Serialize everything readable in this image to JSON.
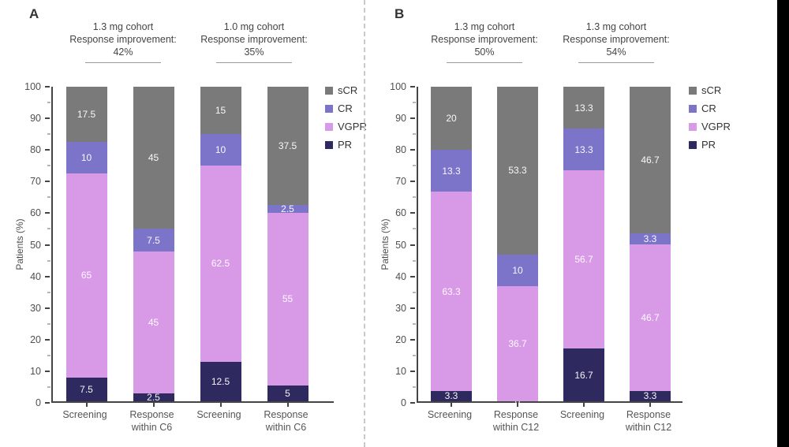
{
  "figure": {
    "background": "#ffffff",
    "axis_color": "#454545",
    "ylabel": "Patients (%)",
    "yticks": [
      0,
      10,
      20,
      30,
      40,
      50,
      60,
      70,
      80,
      90,
      100
    ],
    "legend": [
      {
        "label": "sCR",
        "color": "#7a7a7a"
      },
      {
        "label": "CR",
        "color": "#7c74c9"
      },
      {
        "label": "VGPR",
        "color": "#d89ae6"
      },
      {
        "label": "PR",
        "color": "#2e2a5f"
      }
    ]
  },
  "chart_data": [
    {
      "type": "bar",
      "stacked": true,
      "panel": "A",
      "ylabel": "Patients (%)",
      "ylim": [
        0,
        100
      ],
      "grid": false,
      "legend_position": "right",
      "headers": [
        {
          "cohort": "1.3 mg cohort",
          "label": "Response improvement:",
          "value": "42%"
        },
        {
          "cohort": "1.0 mg cohort",
          "label": "Response improvement:",
          "value": "35%"
        }
      ],
      "categories": [
        [
          "Screening"
        ],
        [
          "Response",
          "within C6"
        ],
        [
          "Screening"
        ],
        [
          "Response",
          "within C6"
        ]
      ],
      "series": [
        {
          "name": "PR",
          "color": "#2e2a5f",
          "values": [
            7.5,
            2.5,
            12.5,
            5
          ],
          "labels": [
            "7.5",
            "2.5",
            "12.5",
            "5"
          ]
        },
        {
          "name": "VGPR",
          "color": "#d89ae6",
          "values": [
            65,
            45,
            62.5,
            55
          ],
          "labels": [
            "65",
            "45",
            "62.5",
            "55"
          ]
        },
        {
          "name": "CR",
          "color": "#7c74c9",
          "values": [
            10,
            7.5,
            10,
            2.5
          ],
          "labels": [
            "10",
            "7.5",
            "10",
            "2.5"
          ]
        },
        {
          "name": "sCR",
          "color": "#7a7a7a",
          "values": [
            17.5,
            45,
            15,
            37.5
          ],
          "labels": [
            "17.5",
            "45",
            "15",
            "37.5"
          ]
        }
      ]
    },
    {
      "type": "bar",
      "stacked": true,
      "panel": "B",
      "ylabel": "Patients (%)",
      "ylim": [
        0,
        100
      ],
      "grid": false,
      "legend_position": "right",
      "headers": [
        {
          "cohort": "1.3 mg cohort",
          "label": "Response improvement:",
          "value": "50%"
        },
        {
          "cohort": "1.3 mg cohort",
          "label": "Response improvement:",
          "value": "54%"
        }
      ],
      "categories": [
        [
          "Screening"
        ],
        [
          "Response",
          "within C12"
        ],
        [
          "Screening"
        ],
        [
          "Response",
          "within C12"
        ]
      ],
      "series": [
        {
          "name": "PR",
          "color": "#2e2a5f",
          "values": [
            3.3,
            0,
            16.7,
            3.3
          ],
          "labels": [
            "3.3",
            "0",
            "16.7",
            "3.3"
          ]
        },
        {
          "name": "VGPR",
          "color": "#d89ae6",
          "values": [
            63.3,
            36.7,
            56.7,
            46.7
          ],
          "labels": [
            "63.3",
            "36.7",
            "56.7",
            "46.7"
          ]
        },
        {
          "name": "CR",
          "color": "#7c74c9",
          "values": [
            13.3,
            10,
            13.3,
            3.3
          ],
          "labels": [
            "13.3",
            "10",
            "13.3",
            "3.3"
          ]
        },
        {
          "name": "sCR",
          "color": "#7a7a7a",
          "values": [
            20,
            53.3,
            13.3,
            46.7
          ],
          "labels": [
            "20",
            "53.3",
            "13.3",
            "46.7"
          ]
        }
      ]
    }
  ]
}
